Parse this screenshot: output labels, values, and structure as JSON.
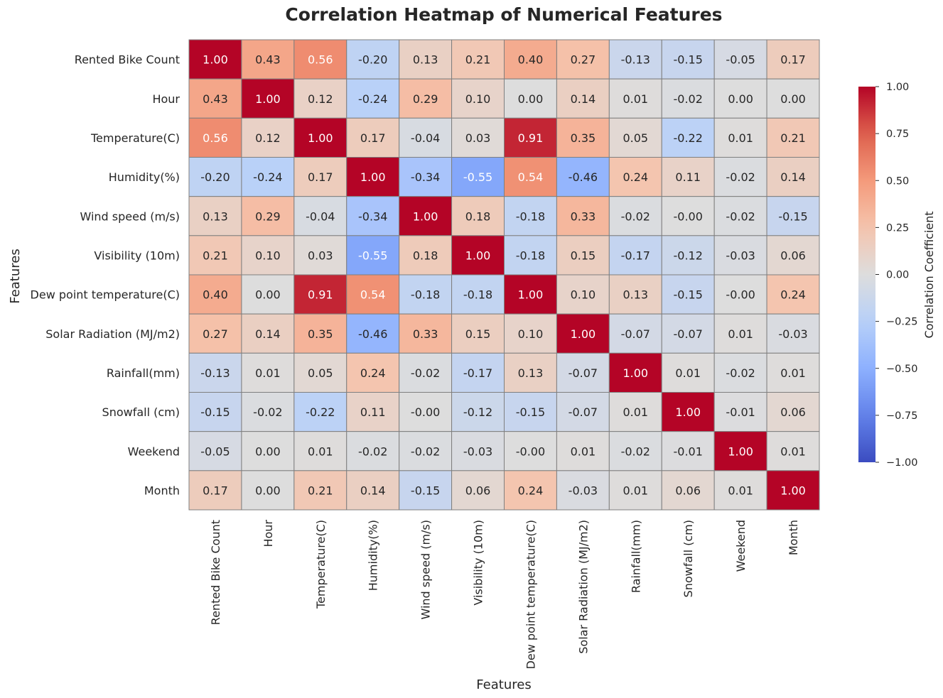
{
  "chart_data": {
    "type": "heatmap",
    "title": "Correlation Heatmap of Numerical Features",
    "xlabel": "Features",
    "ylabel": "Features",
    "colorbar_label": "Correlation Coefficient",
    "colormap": "coolwarm",
    "vmin": -1,
    "vmax": 1,
    "colorbar_ticks": [
      "1.00",
      "0.75",
      "0.50",
      "0.25",
      "0.00",
      "−0.25",
      "−0.50",
      "−0.75",
      "−1.00"
    ],
    "colorbar_tick_values": [
      1,
      0.75,
      0.5,
      0.25,
      0,
      -0.25,
      -0.5,
      -0.75,
      -1
    ],
    "labels": [
      "Rented Bike Count",
      "Hour",
      "Temperature(C)",
      "Humidity(%)",
      "Wind speed (m/s)",
      "Visibility (10m)",
      "Dew point temperature(C)",
      "Solar Radiation (MJ/m2)",
      "Rainfall(mm)",
      "Snowfall (cm)",
      "Weekend",
      "Month"
    ],
    "matrix": [
      [
        "1.00",
        "0.43",
        "0.56",
        "-0.20",
        "0.13",
        "0.21",
        "0.40",
        "0.27",
        "-0.13",
        "-0.15",
        "-0.05",
        "0.17"
      ],
      [
        "0.43",
        "1.00",
        "0.12",
        "-0.24",
        "0.29",
        "0.10",
        "0.00",
        "0.14",
        "0.01",
        "-0.02",
        "0.00",
        "0.00"
      ],
      [
        "0.56",
        "0.12",
        "1.00",
        "0.17",
        "-0.04",
        "0.03",
        "0.91",
        "0.35",
        "0.05",
        "-0.22",
        "0.01",
        "0.21"
      ],
      [
        "-0.20",
        "-0.24",
        "0.17",
        "1.00",
        "-0.34",
        "-0.55",
        "0.54",
        "-0.46",
        "0.24",
        "0.11",
        "-0.02",
        "0.14"
      ],
      [
        "0.13",
        "0.29",
        "-0.04",
        "-0.34",
        "1.00",
        "0.18",
        "-0.18",
        "0.33",
        "-0.02",
        "-0.00",
        "-0.02",
        "-0.15"
      ],
      [
        "0.21",
        "0.10",
        "0.03",
        "-0.55",
        "0.18",
        "1.00",
        "-0.18",
        "0.15",
        "-0.17",
        "-0.12",
        "-0.03",
        "0.06"
      ],
      [
        "0.40",
        "0.00",
        "0.91",
        "0.54",
        "-0.18",
        "-0.18",
        "1.00",
        "0.10",
        "0.13",
        "-0.15",
        "-0.00",
        "0.24"
      ],
      [
        "0.27",
        "0.14",
        "0.35",
        "-0.46",
        "0.33",
        "0.15",
        "0.10",
        "1.00",
        "-0.07",
        "-0.07",
        "0.01",
        "-0.03"
      ],
      [
        "-0.13",
        "0.01",
        "0.05",
        "0.24",
        "-0.02",
        "-0.17",
        "0.13",
        "-0.07",
        "1.00",
        "0.01",
        "-0.02",
        "0.01"
      ],
      [
        "-0.15",
        "-0.02",
        "-0.22",
        "0.11",
        "-0.00",
        "-0.12",
        "-0.15",
        "-0.07",
        "0.01",
        "1.00",
        "-0.01",
        "0.06"
      ],
      [
        "-0.05",
        "0.00",
        "0.01",
        "-0.02",
        "-0.02",
        "-0.03",
        "-0.00",
        "0.01",
        "-0.02",
        "-0.01",
        "1.00",
        "0.01"
      ],
      [
        "0.17",
        "0.00",
        "0.21",
        "0.14",
        "-0.15",
        "0.06",
        "0.24",
        "-0.03",
        "0.01",
        "0.06",
        "0.01",
        "1.00"
      ]
    ]
  }
}
